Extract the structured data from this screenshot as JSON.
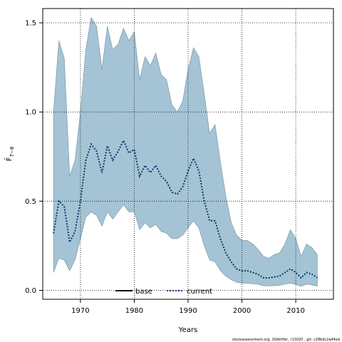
{
  "chart_data": {
    "type": "area",
    "xlabel": "Years",
    "ylabel": "F̄",
    "ylabel_subscript": "7−8",
    "xlim": [
      1963,
      2017
    ],
    "ylim": [
      -0.05,
      1.58
    ],
    "x_ticks": [
      1970,
      1980,
      1990,
      2000,
      2010
    ],
    "y_ticks": [
      0.0,
      0.5,
      1.0,
      1.5
    ],
    "x_tick_labels": [
      "1970",
      "1980",
      "1990",
      "2000",
      "2010"
    ],
    "y_tick_labels": [
      "0.0",
      "0.5",
      "1.0",
      "1.5"
    ],
    "grid": true,
    "legend_position": "bottom",
    "caption": "stockassessment.org, USAltHer, r13020 , git: c28bdc2a44ed",
    "colors": {
      "band": "#a4c4d5",
      "band_edge": "#6f8f9e",
      "current": "#0a3a6a",
      "base": "#000000"
    },
    "x": [
      1965,
      1966,
      1967,
      1968,
      1969,
      1970,
      1971,
      1972,
      1973,
      1974,
      1975,
      1976,
      1977,
      1978,
      1979,
      1980,
      1981,
      1982,
      1983,
      1984,
      1985,
      1986,
      1987,
      1988,
      1989,
      1990,
      1991,
      1992,
      1993,
      1994,
      1995,
      1996,
      1997,
      1998,
      1999,
      2000,
      2001,
      2002,
      2003,
      2004,
      2005,
      2006,
      2007,
      2008,
      2009,
      2010,
      2011,
      2012,
      2013,
      2014
    ],
    "series": [
      {
        "name": "current",
        "line_style": "dotted",
        "values": [
          0.32,
          0.5,
          0.47,
          0.27,
          0.33,
          0.5,
          0.73,
          0.82,
          0.78,
          0.66,
          0.81,
          0.73,
          0.78,
          0.84,
          0.77,
          0.79,
          0.64,
          0.7,
          0.66,
          0.7,
          0.64,
          0.61,
          0.55,
          0.54,
          0.58,
          0.67,
          0.74,
          0.67,
          0.5,
          0.39,
          0.39,
          0.29,
          0.21,
          0.16,
          0.12,
          0.11,
          0.11,
          0.1,
          0.09,
          0.07,
          0.07,
          0.075,
          0.08,
          0.1,
          0.12,
          0.1,
          0.07,
          0.1,
          0.09,
          0.07
        ],
        "lower": [
          0.1,
          0.18,
          0.17,
          0.11,
          0.17,
          0.29,
          0.41,
          0.44,
          0.42,
          0.36,
          0.44,
          0.4,
          0.44,
          0.48,
          0.44,
          0.44,
          0.34,
          0.38,
          0.35,
          0.37,
          0.33,
          0.32,
          0.29,
          0.29,
          0.31,
          0.35,
          0.39,
          0.35,
          0.25,
          0.17,
          0.16,
          0.11,
          0.08,
          0.06,
          0.045,
          0.04,
          0.04,
          0.037,
          0.034,
          0.025,
          0.025,
          0.026,
          0.028,
          0.035,
          0.04,
          0.033,
          0.022,
          0.035,
          0.03,
          0.024
        ],
        "upper": [
          1.0,
          1.4,
          1.3,
          0.64,
          0.73,
          1.0,
          1.35,
          1.53,
          1.48,
          1.24,
          1.48,
          1.35,
          1.38,
          1.47,
          1.4,
          1.45,
          1.18,
          1.31,
          1.26,
          1.33,
          1.21,
          1.18,
          1.04,
          1.0,
          1.06,
          1.24,
          1.36,
          1.31,
          1.1,
          0.88,
          0.93,
          0.72,
          0.53,
          0.38,
          0.31,
          0.28,
          0.28,
          0.26,
          0.23,
          0.19,
          0.18,
          0.2,
          0.21,
          0.26,
          0.34,
          0.29,
          0.19,
          0.26,
          0.24,
          0.2
        ]
      }
    ],
    "legend": [
      {
        "label": "base",
        "style": "solid"
      },
      {
        "label": "current",
        "style": "dotted"
      }
    ]
  }
}
